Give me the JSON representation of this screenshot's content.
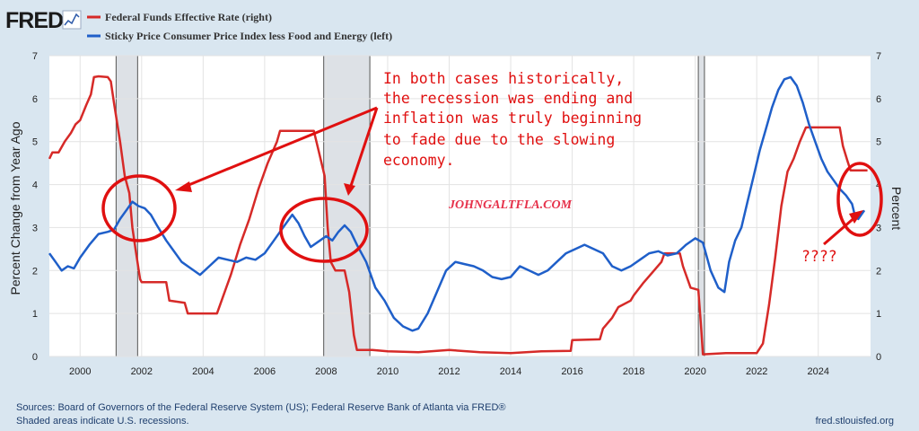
{
  "brand": "FRED",
  "chart_data": {
    "type": "line",
    "x_range": [
      1999,
      2025.7
    ],
    "y_left": {
      "label": "Percent Change from Year Ago",
      "range": [
        0,
        7
      ],
      "ticks": [
        "0",
        "1",
        "2",
        "3",
        "4",
        "5",
        "6",
        "7"
      ]
    },
    "y_right": {
      "label": "Percent",
      "range": [
        0,
        7
      ],
      "ticks": [
        "0",
        "1",
        "2",
        "3",
        "4",
        "5",
        "6",
        "7"
      ]
    },
    "x_ticks": [
      "2000",
      "2002",
      "2004",
      "2006",
      "2008",
      "2010",
      "2012",
      "2014",
      "2016",
      "2018",
      "2020",
      "2022",
      "2024"
    ],
    "recessions": [
      [
        2001.17,
        2001.87
      ],
      [
        2007.92,
        2009.42
      ],
      [
        2020.1,
        2020.3
      ]
    ],
    "series": [
      {
        "name": "Federal Funds Effective Rate (right)",
        "axis": "right",
        "color": "#d62a28",
        "points": [
          [
            1999.0,
            4.6
          ],
          [
            1999.1,
            4.75
          ],
          [
            1999.3,
            4.75
          ],
          [
            1999.5,
            5.0
          ],
          [
            1999.7,
            5.2
          ],
          [
            1999.85,
            5.4
          ],
          [
            2000.0,
            5.5
          ],
          [
            2000.2,
            5.85
          ],
          [
            2000.35,
            6.1
          ],
          [
            2000.45,
            6.5
          ],
          [
            2000.6,
            6.52
          ],
          [
            2000.9,
            6.5
          ],
          [
            2001.0,
            6.4
          ],
          [
            2001.1,
            5.9
          ],
          [
            2001.3,
            5.0
          ],
          [
            2001.45,
            4.2
          ],
          [
            2001.6,
            3.8
          ],
          [
            2001.7,
            3.0
          ],
          [
            2001.8,
            2.5
          ],
          [
            2001.95,
            1.8
          ],
          [
            2002.0,
            1.73
          ],
          [
            2002.8,
            1.73
          ],
          [
            2002.9,
            1.3
          ],
          [
            2003.4,
            1.25
          ],
          [
            2003.5,
            1.0
          ],
          [
            2004.45,
            1.0
          ],
          [
            2004.6,
            1.3
          ],
          [
            2004.9,
            1.9
          ],
          [
            2005.2,
            2.6
          ],
          [
            2005.5,
            3.2
          ],
          [
            2005.8,
            3.9
          ],
          [
            2006.1,
            4.5
          ],
          [
            2006.4,
            5.0
          ],
          [
            2006.5,
            5.25
          ],
          [
            2007.6,
            5.25
          ],
          [
            2007.75,
            4.8
          ],
          [
            2007.95,
            4.2
          ],
          [
            2008.05,
            3.0
          ],
          [
            2008.15,
            2.2
          ],
          [
            2008.3,
            2.0
          ],
          [
            2008.6,
            2.0
          ],
          [
            2008.75,
            1.5
          ],
          [
            2008.9,
            0.5
          ],
          [
            2009.0,
            0.15
          ],
          [
            2009.5,
            0.15
          ],
          [
            2010.0,
            0.12
          ],
          [
            2011.0,
            0.1
          ],
          [
            2012.0,
            0.15
          ],
          [
            2013.0,
            0.1
          ],
          [
            2014.0,
            0.08
          ],
          [
            2015.0,
            0.12
          ],
          [
            2015.95,
            0.13
          ],
          [
            2016.0,
            0.38
          ],
          [
            2016.9,
            0.4
          ],
          [
            2017.0,
            0.65
          ],
          [
            2017.3,
            0.9
          ],
          [
            2017.5,
            1.15
          ],
          [
            2017.9,
            1.3
          ],
          [
            2018.0,
            1.42
          ],
          [
            2018.3,
            1.7
          ],
          [
            2018.6,
            1.95
          ],
          [
            2018.9,
            2.2
          ],
          [
            2019.0,
            2.4
          ],
          [
            2019.5,
            2.4
          ],
          [
            2019.6,
            2.1
          ],
          [
            2019.85,
            1.6
          ],
          [
            2020.1,
            1.55
          ],
          [
            2020.2,
            0.6
          ],
          [
            2020.25,
            0.05
          ],
          [
            2021.0,
            0.08
          ],
          [
            2022.0,
            0.08
          ],
          [
            2022.2,
            0.3
          ],
          [
            2022.4,
            1.2
          ],
          [
            2022.6,
            2.3
          ],
          [
            2022.8,
            3.5
          ],
          [
            2023.0,
            4.3
          ],
          [
            2023.2,
            4.6
          ],
          [
            2023.4,
            5.0
          ],
          [
            2023.6,
            5.33
          ],
          [
            2024.7,
            5.33
          ],
          [
            2024.8,
            4.9
          ],
          [
            2024.95,
            4.55
          ],
          [
            2025.05,
            4.33
          ],
          [
            2025.6,
            4.33
          ]
        ]
      },
      {
        "name": "Sticky Price Consumer Price Index less Food and Energy (left)",
        "axis": "left",
        "color": "#1f5fc9",
        "points": [
          [
            1999.0,
            2.4
          ],
          [
            1999.2,
            2.2
          ],
          [
            1999.4,
            2.0
          ],
          [
            1999.6,
            2.1
          ],
          [
            1999.8,
            2.05
          ],
          [
            2000.0,
            2.3
          ],
          [
            2000.3,
            2.6
          ],
          [
            2000.6,
            2.85
          ],
          [
            2000.9,
            2.9
          ],
          [
            2001.1,
            2.95
          ],
          [
            2001.3,
            3.2
          ],
          [
            2001.5,
            3.4
          ],
          [
            2001.7,
            3.6
          ],
          [
            2001.9,
            3.5
          ],
          [
            2002.1,
            3.45
          ],
          [
            2002.3,
            3.3
          ],
          [
            2002.5,
            3.05
          ],
          [
            2002.8,
            2.7
          ],
          [
            2003.0,
            2.5
          ],
          [
            2003.3,
            2.2
          ],
          [
            2003.6,
            2.05
          ],
          [
            2003.9,
            1.9
          ],
          [
            2004.2,
            2.1
          ],
          [
            2004.5,
            2.3
          ],
          [
            2004.8,
            2.25
          ],
          [
            2005.1,
            2.2
          ],
          [
            2005.4,
            2.3
          ],
          [
            2005.7,
            2.25
          ],
          [
            2006.0,
            2.4
          ],
          [
            2006.3,
            2.7
          ],
          [
            2006.6,
            3.0
          ],
          [
            2006.9,
            3.3
          ],
          [
            2007.1,
            3.1
          ],
          [
            2007.3,
            2.8
          ],
          [
            2007.5,
            2.55
          ],
          [
            2007.8,
            2.7
          ],
          [
            2008.0,
            2.8
          ],
          [
            2008.2,
            2.7
          ],
          [
            2008.4,
            2.9
          ],
          [
            2008.6,
            3.05
          ],
          [
            2008.8,
            2.9
          ],
          [
            2009.0,
            2.6
          ],
          [
            2009.3,
            2.2
          ],
          [
            2009.6,
            1.6
          ],
          [
            2009.9,
            1.3
          ],
          [
            2010.2,
            0.9
          ],
          [
            2010.5,
            0.7
          ],
          [
            2010.8,
            0.6
          ],
          [
            2011.0,
            0.65
          ],
          [
            2011.3,
            1.0
          ],
          [
            2011.6,
            1.5
          ],
          [
            2011.9,
            2.0
          ],
          [
            2012.2,
            2.2
          ],
          [
            2012.5,
            2.15
          ],
          [
            2012.8,
            2.1
          ],
          [
            2013.1,
            2.0
          ],
          [
            2013.4,
            1.85
          ],
          [
            2013.7,
            1.8
          ],
          [
            2014.0,
            1.85
          ],
          [
            2014.3,
            2.1
          ],
          [
            2014.6,
            2.0
          ],
          [
            2014.9,
            1.9
          ],
          [
            2015.2,
            2.0
          ],
          [
            2015.5,
            2.2
          ],
          [
            2015.8,
            2.4
          ],
          [
            2016.1,
            2.5
          ],
          [
            2016.4,
            2.6
          ],
          [
            2016.7,
            2.5
          ],
          [
            2017.0,
            2.4
          ],
          [
            2017.3,
            2.1
          ],
          [
            2017.6,
            2.0
          ],
          [
            2017.9,
            2.1
          ],
          [
            2018.2,
            2.25
          ],
          [
            2018.5,
            2.4
          ],
          [
            2018.8,
            2.45
          ],
          [
            2019.1,
            2.35
          ],
          [
            2019.4,
            2.4
          ],
          [
            2019.7,
            2.6
          ],
          [
            2020.0,
            2.75
          ],
          [
            2020.25,
            2.65
          ],
          [
            2020.5,
            2.0
          ],
          [
            2020.75,
            1.6
          ],
          [
            2020.95,
            1.5
          ],
          [
            2021.1,
            2.2
          ],
          [
            2021.3,
            2.7
          ],
          [
            2021.5,
            3.0
          ],
          [
            2021.7,
            3.6
          ],
          [
            2021.9,
            4.2
          ],
          [
            2022.1,
            4.8
          ],
          [
            2022.3,
            5.3
          ],
          [
            2022.5,
            5.8
          ],
          [
            2022.7,
            6.2
          ],
          [
            2022.9,
            6.45
          ],
          [
            2023.1,
            6.5
          ],
          [
            2023.3,
            6.3
          ],
          [
            2023.5,
            5.9
          ],
          [
            2023.7,
            5.4
          ],
          [
            2023.9,
            5.0
          ],
          [
            2024.1,
            4.6
          ],
          [
            2024.3,
            4.3
          ],
          [
            2024.5,
            4.1
          ],
          [
            2024.7,
            3.9
          ],
          [
            2024.9,
            3.75
          ],
          [
            2025.1,
            3.55
          ],
          [
            2025.2,
            3.25
          ],
          [
            2025.3,
            3.2
          ],
          [
            2025.5,
            3.4
          ]
        ]
      }
    ]
  },
  "annotations": {
    "callout_lines": [
      "In both cases historically,",
      "the recession was ending and",
      "inflation was truly beginning",
      "to fade due to the slowing",
      "economy."
    ],
    "watermark": "JOHNGALTFLA.COM",
    "question": "????"
  },
  "footer": {
    "sources": "Sources: Board of Governors of the Federal Reserve System (US); Federal Reserve Bank of Atlanta via FRED®",
    "note": "Shaded areas indicate U.S. recessions.",
    "url": "fred.stlouisfed.org"
  }
}
